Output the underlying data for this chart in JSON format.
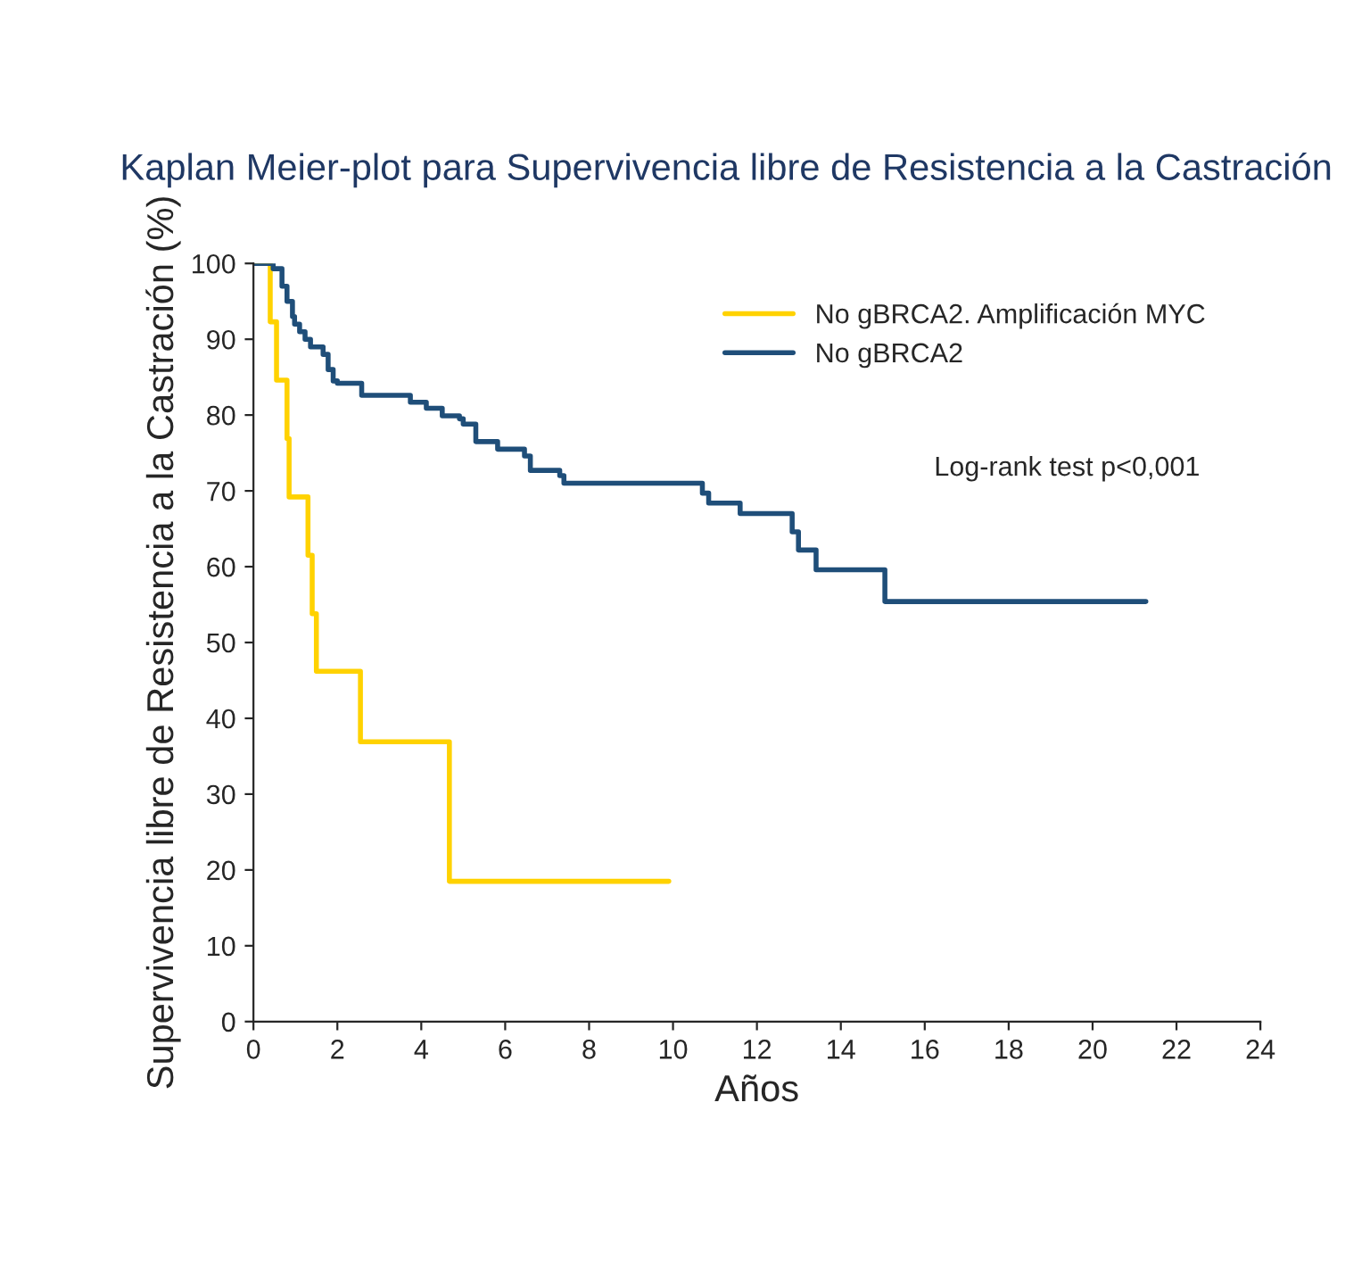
{
  "chart_data": {
    "type": "step",
    "title": "Kaplan Meier-plot para Supervivencia libre de Resistencia a la Castración",
    "xlabel": "Años",
    "ylabel": "Supervivencia libre de Resistencia a la Castración (%)",
    "xlim": [
      0,
      24
    ],
    "xticks": [
      0,
      2,
      4,
      6,
      8,
      10,
      12,
      14,
      16,
      18,
      20,
      22,
      24
    ],
    "ylim": [
      0,
      100
    ],
    "yticks": [
      0,
      10,
      20,
      30,
      40,
      50,
      60,
      70,
      80,
      90,
      100
    ],
    "grid": false,
    "legend": "top right",
    "line_style": "solid",
    "marker": "none",
    "annotations": [
      "Log-rank test p<0,001"
    ],
    "series": [
      {
        "name": "No gBRCA2. Amplificación MYC",
        "color": "#ffd200",
        "x": [
          0,
          0.4,
          0.55,
          0.8,
          0.85,
          1.3,
          1.4,
          1.5,
          2.55,
          4.67,
          9.9
        ],
        "values": [
          100,
          92.3,
          84.6,
          76.9,
          69.2,
          61.5,
          53.8,
          46.2,
          36.9,
          18.5,
          18.5
        ]
      },
      {
        "name": "No gBRCA2",
        "color": "#1f4e79",
        "x": [
          0,
          0.47,
          0.68,
          0.8,
          0.93,
          0.98,
          1.1,
          1.23,
          1.36,
          1.66,
          1.78,
          1.9,
          2.0,
          2.58,
          3.74,
          4.12,
          4.5,
          4.91,
          5.0,
          5.3,
          5.82,
          6.46,
          6.6,
          7.3,
          7.4,
          10.7,
          10.85,
          11.6,
          12.84,
          12.99,
          13.41,
          15.05,
          21.27
        ],
        "values": [
          100,
          99.3,
          97,
          95,
          93,
          92,
          91,
          90,
          89,
          88,
          86,
          84.5,
          84.2,
          82.6,
          81.7,
          80.9,
          79.9,
          79.5,
          78.8,
          76.5,
          75.5,
          74.6,
          72.7,
          72.0,
          71.0,
          69.7,
          68.4,
          67.0,
          64.6,
          62.2,
          59.6,
          55.4,
          55.4
        ]
      }
    ]
  }
}
